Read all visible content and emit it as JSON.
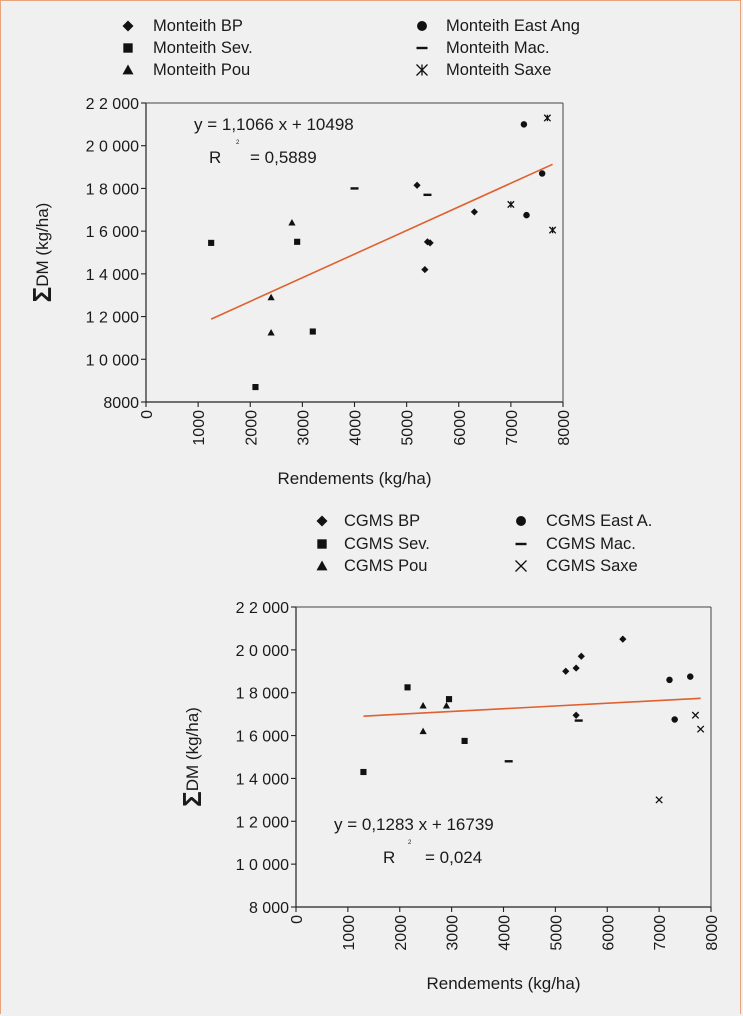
{
  "chart_data": [
    {
      "type": "scatter",
      "xlabel": "Rendements (kg/ha)",
      "ylabel": "DM (kg/ha)",
      "ylabel_symbol": "Σ",
      "xlim": [
        0,
        8000
      ],
      "ylim": [
        8000,
        22000
      ],
      "xticks": [
        "0",
        "1000",
        "2000",
        "3000",
        "4000",
        "5000",
        "6000",
        "7000",
        "8000"
      ],
      "yticks": [
        "8000",
        "1 0 000",
        "1 2 000",
        "1 4 000",
        "1 6 000",
        "1 8 000",
        "2 0 000",
        "2 2 000"
      ],
      "equation": "y = 1,1066 x + 10498",
      "r2_label": "R",
      "r2_sup": "2",
      "r2_value": "= 0,5889",
      "trendline": {
        "x1": 1250,
        "x2": 7800,
        "slope": 1.1066,
        "intercept": 10498,
        "color": "#e06030"
      },
      "legend": {
        "position": "top"
      },
      "series": [
        {
          "name": "Monteith BP",
          "marker": "diamond",
          "points": [
            [
              5200,
              18150
            ],
            [
              5350,
              14200
            ],
            [
              5400,
              15500
            ],
            [
              5450,
              15450
            ],
            [
              6300,
              16900
            ]
          ]
        },
        {
          "name": "Monteith East Ang",
          "marker": "circle",
          "points": [
            [
              7250,
              21000
            ],
            [
              7300,
              16750
            ],
            [
              7600,
              18700
            ]
          ]
        },
        {
          "name": "Monteith Sev.",
          "marker": "square",
          "points": [
            [
              1250,
              15450
            ],
            [
              2100,
              8700
            ],
            [
              2900,
              15500
            ],
            [
              3200,
              11300
            ]
          ]
        },
        {
          "name": "Monteith Mac.",
          "marker": "dash",
          "points": [
            [
              4000,
              18000
            ],
            [
              5400,
              17700
            ]
          ]
        },
        {
          "name": "Monteith Pou",
          "marker": "triangle",
          "points": [
            [
              2400,
              12900
            ],
            [
              2400,
              11250
            ],
            [
              2800,
              16400
            ]
          ]
        },
        {
          "name": "Monteith Saxe",
          "marker": "asterisk",
          "points": [
            [
              7000,
              17250
            ],
            [
              7700,
              21300
            ],
            [
              7800,
              16050
            ]
          ]
        }
      ]
    },
    {
      "type": "scatter",
      "xlabel": "Rendements (kg/ha)",
      "ylabel": "DM (kg/ha)",
      "ylabel_symbol": "Σ",
      "xlim": [
        0,
        8000
      ],
      "ylim": [
        8000,
        22000
      ],
      "xticks": [
        "0",
        "1000",
        "2000",
        "3000",
        "4000",
        "5000",
        "6000",
        "7000",
        "8000"
      ],
      "yticks": [
        "8 000",
        "1 0 000",
        "1 2 000",
        "1 4 000",
        "1 6 000",
        "1 8 000",
        "2 0 000",
        "2 2 000"
      ],
      "equation": "y = 0,1283 x + 16739",
      "r2_label": "R",
      "r2_sup": "2",
      "r2_value": "= 0,024",
      "trendline": {
        "x1": 1300,
        "x2": 7800,
        "slope": 0.1283,
        "intercept": 16739,
        "color": "#e06030"
      },
      "legend": {
        "position": "top"
      },
      "series": [
        {
          "name": "CGMS BP",
          "marker": "diamond",
          "points": [
            [
              5200,
              19000
            ],
            [
              5400,
              19150
            ],
            [
              5400,
              16950
            ],
            [
              5500,
              19700
            ],
            [
              6300,
              20500
            ]
          ]
        },
        {
          "name": "CGMS East A.",
          "marker": "circle",
          "points": [
            [
              7200,
              18600
            ],
            [
              7300,
              16750
            ],
            [
              7600,
              18750
            ]
          ]
        },
        {
          "name": "CGMS Sev.",
          "marker": "square",
          "points": [
            [
              1300,
              14300
            ],
            [
              2150,
              18250
            ],
            [
              2950,
              17700
            ],
            [
              3250,
              15750
            ]
          ]
        },
        {
          "name": "CGMS Mac.",
          "marker": "dash",
          "points": [
            [
              4100,
              14800
            ],
            [
              5450,
              16700
            ]
          ]
        },
        {
          "name": "CGMS Pou",
          "marker": "triangle",
          "points": [
            [
              2450,
              17400
            ],
            [
              2450,
              16200
            ],
            [
              2900,
              17400
            ]
          ]
        },
        {
          "name": "CGMS Saxe",
          "marker": "cross",
          "points": [
            [
              7000,
              13000
            ],
            [
              7700,
              16950
            ],
            [
              7800,
              16300
            ]
          ]
        }
      ]
    }
  ]
}
